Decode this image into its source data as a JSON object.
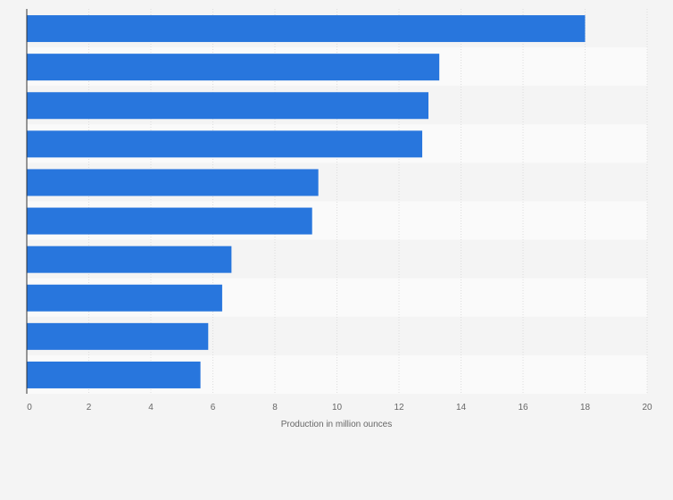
{
  "chart_data": {
    "type": "bar",
    "orientation": "horizontal",
    "categories": [
      "",
      "",
      "",
      "",
      "",
      "",
      "",
      "",
      "",
      ""
    ],
    "values": [
      18.0,
      13.3,
      12.95,
      12.75,
      9.4,
      9.2,
      6.6,
      6.3,
      5.85,
      5.6
    ],
    "xlabel": "Production in million ounces",
    "ylabel": "",
    "xlim": [
      0,
      20
    ],
    "xticks": [
      "0",
      "2",
      "4",
      "6",
      "8",
      "10",
      "12",
      "14",
      "16",
      "18",
      "20"
    ],
    "grid": true,
    "bar_color": "#2876dd",
    "band_colors": [
      "#f4f4f4",
      "#fafafa"
    ]
  }
}
